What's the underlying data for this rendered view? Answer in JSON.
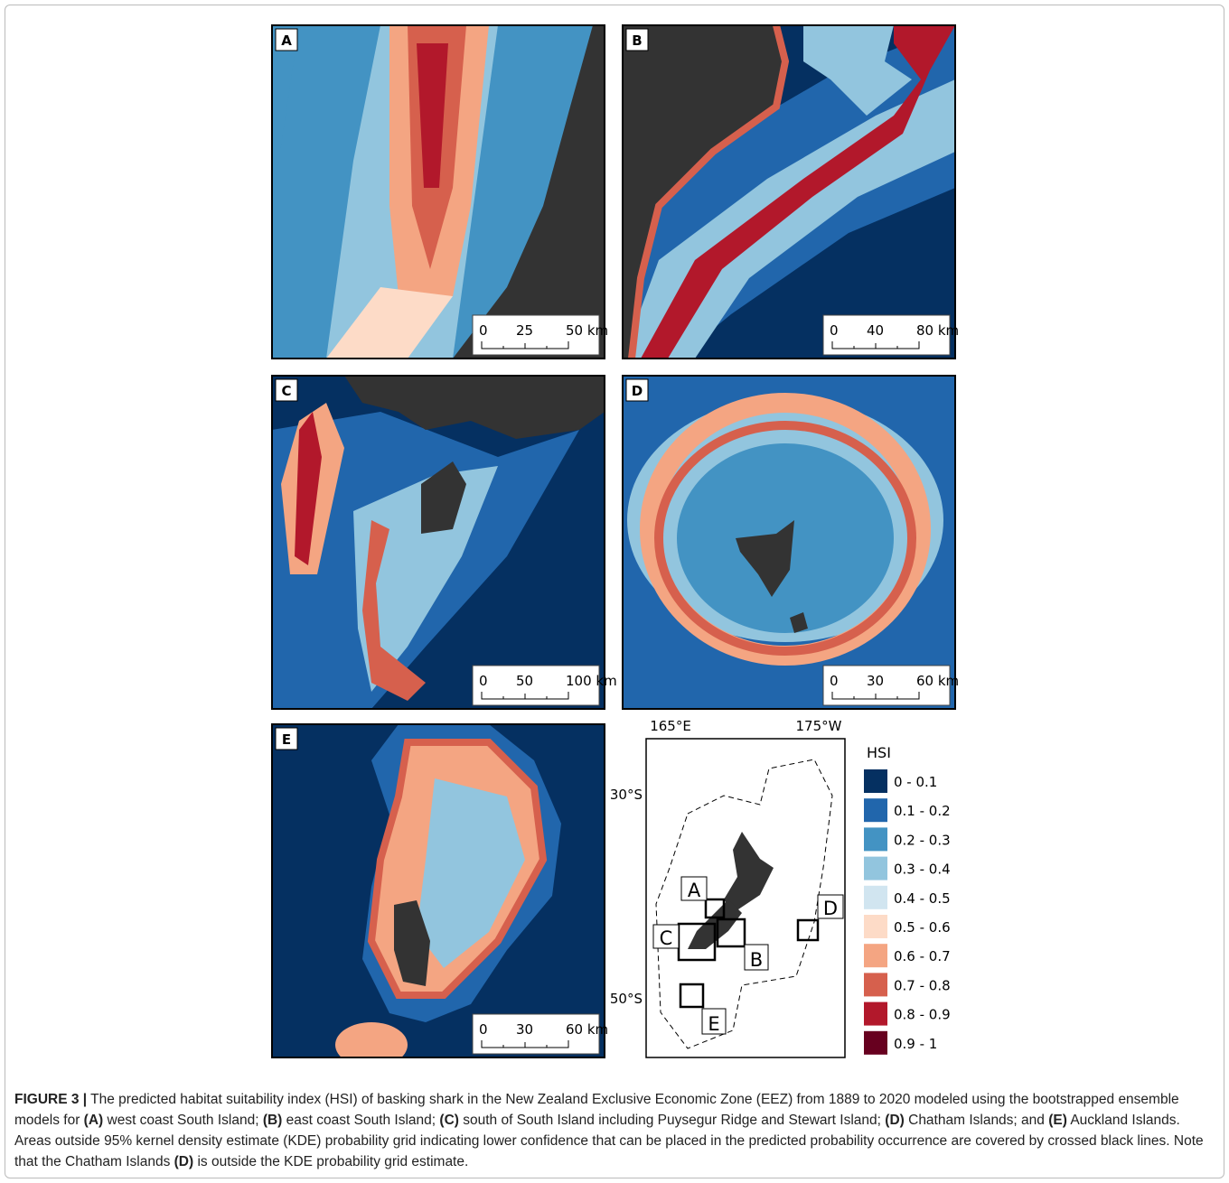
{
  "panels": [
    {
      "label": "A",
      "scale": [
        "0",
        "25",
        "50 km"
      ]
    },
    {
      "label": "B",
      "scale": [
        "0",
        "40",
        "80 km"
      ]
    },
    {
      "label": "C",
      "scale": [
        "0",
        "50",
        "100 km"
      ]
    },
    {
      "label": "D",
      "scale": [
        "0",
        "30",
        "60 km"
      ]
    },
    {
      "label": "E",
      "scale": [
        "0",
        "30",
        "60 km"
      ]
    }
  ],
  "overview": {
    "lon_labels": [
      "165°E",
      "175°W"
    ],
    "lat_labels": [
      "30°S",
      "50°S"
    ],
    "boxes": [
      "A",
      "B",
      "C",
      "D",
      "E"
    ]
  },
  "legend": {
    "title": "HSI",
    "items": [
      {
        "label": "0 - 0.1",
        "color": "#053061"
      },
      {
        "label": "0.1 - 0.2",
        "color": "#2166ac"
      },
      {
        "label": "0.2 - 0.3",
        "color": "#4393c3"
      },
      {
        "label": "0.3 - 0.4",
        "color": "#92c5de"
      },
      {
        "label": "0.4 - 0.5",
        "color": "#d1e5f0"
      },
      {
        "label": "0.5 - 0.6",
        "color": "#fddbc7"
      },
      {
        "label": "0.6 - 0.7",
        "color": "#f4a582"
      },
      {
        "label": "0.7 - 0.8",
        "color": "#d6604d"
      },
      {
        "label": "0.8 - 0.9",
        "color": "#b2182b"
      },
      {
        "label": "0.9 - 1",
        "color": "#67001f"
      }
    ]
  },
  "caption": [
    "FIGURE 3 |",
    " The predicted habitat suitability index (HSI) of basking shark in the New Zealand Exclusive Economic Zone (EEZ) from 1889 to 2020 modeled using the bootstrapped ensemble models for ",
    "(A)",
    " west coast South Island; ",
    "(B)",
    " east coast South Island; ",
    "(C)",
    " south of South Island including Puysegur Ridge and Stewart Island; ",
    "(D)",
    " Chatham Islands; and ",
    "(E)",
    " Auckland Islands. Areas outside 95% kernel density estimate (KDE) probability grid indicating lower confidence that can be placed in the predicted probability occurrence are covered by crossed black lines. Note that the Chatham Islands ",
    "(D)",
    " is outside the KDE probability grid estimate."
  ]
}
